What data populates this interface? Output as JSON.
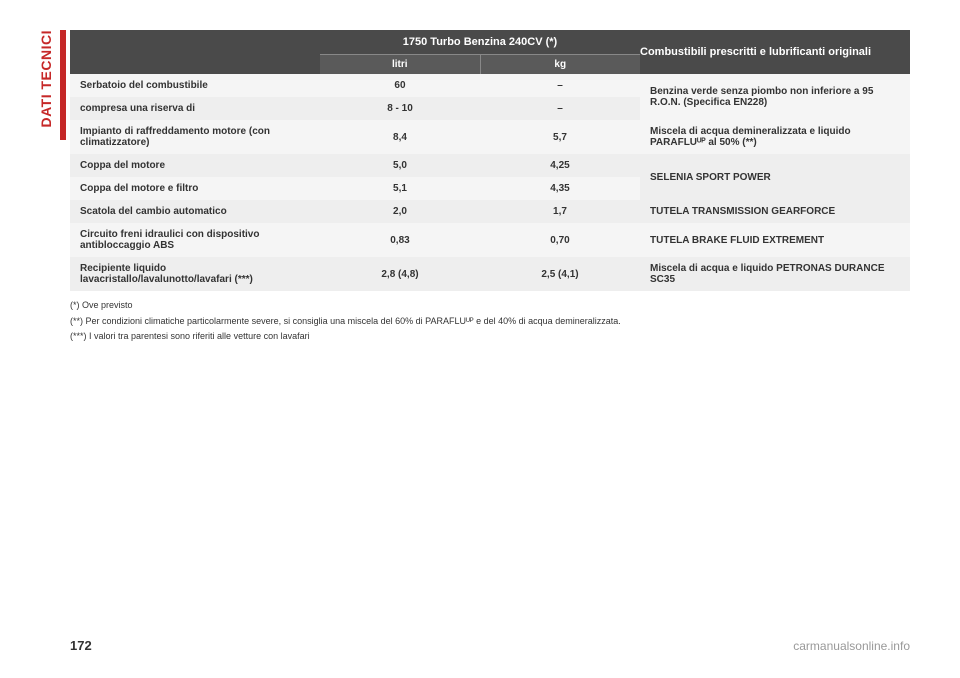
{
  "sidebar_label": "DATI TECNICI",
  "table": {
    "header": {
      "col2_title": "1750 Turbo Benzina 240CV (*)",
      "col2_sub1": "litri",
      "col2_sub2": "kg",
      "col3_title": "Combustibili prescritti e lubrificanti originali"
    },
    "rows": [
      {
        "label": "Serbatoio del combustibile",
        "litri": "60",
        "kg": "–",
        "desc": "Benzina verde senza piombo non inferiore a 95 R.O.N. (Specifica EN228)",
        "rowspan_desc": 2,
        "bg": "light"
      },
      {
        "label": "compresa una riserva di",
        "litri": "8 - 10",
        "kg": "–",
        "bg": "lighter"
      },
      {
        "label": "Impianto di raffreddamento motore (con climatizzatore)",
        "litri": "8,4",
        "kg": "5,7",
        "desc": "Miscela di acqua demineralizzata e liquido PARAFLUᵁᴾ al 50% (**)",
        "bg": "light"
      },
      {
        "label": "Coppa del motore",
        "litri": "5,0",
        "kg": "4,25",
        "desc": "SELENIA SPORT POWER",
        "rowspan_desc": 2,
        "bg": "lighter"
      },
      {
        "label": "Coppa del motore e filtro",
        "litri": "5,1",
        "kg": "4,35",
        "bg": "light"
      },
      {
        "label": "Scatola del cambio automatico",
        "litri": "2,0",
        "kg": "1,7",
        "desc": "TUTELA TRANSMISSION GEARFORCE",
        "bg": "lighter"
      },
      {
        "label": "Circuito freni idraulici con dispositivo antibloccaggio ABS",
        "litri": "0,83",
        "kg": "0,70",
        "desc": "TUTELA BRAKE FLUID EXTREMENT",
        "bg": "light"
      },
      {
        "label": "Recipiente liquido lavacristallo/lavalunotto/lavafari (***)",
        "litri": "2,8 (4,8)",
        "kg": "2,5 (4,1)",
        "desc": "Miscela di acqua e liquido PETRONAS DURANCE SC35",
        "bg": "lighter"
      }
    ]
  },
  "footnotes": {
    "note1": "(*) Ove previsto",
    "note2": "(**) Per condizioni climatiche particolarmente severe, si consiglia una miscela del 60% di PARAFLUᵁᴾ e del 40% di acqua demineralizzata.",
    "note3": "(***) I valori tra parentesi sono riferiti alle vetture con lavafari"
  },
  "page_number": "172",
  "footer_link": "carmanualsonline.info",
  "styling": {
    "sidebar_color": "#c62828",
    "header_bg": "#4a4a4a",
    "header_sub_bg": "#5a5a5a",
    "row_light_bg": "#f5f5f5",
    "row_lighter_bg": "#eeeeee",
    "text_color": "#333333",
    "footer_color": "#999999"
  }
}
